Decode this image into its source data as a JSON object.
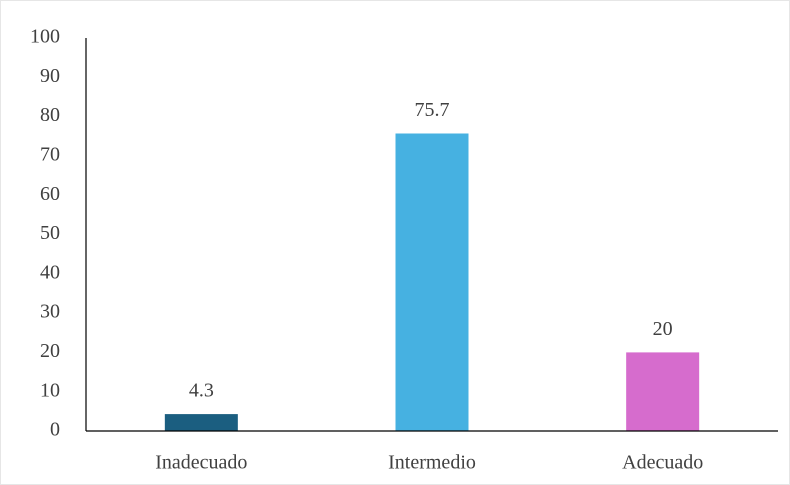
{
  "chart_data": {
    "type": "bar",
    "categories": [
      "Inadecuado",
      "Intermedio",
      "Adecuado"
    ],
    "values": [
      4.3,
      75.7,
      20
    ],
    "colors": [
      "#1b5e80",
      "#46b1e1",
      "#d66ccd"
    ],
    "ylim": [
      0,
      100
    ],
    "yticks": [
      0,
      10,
      20,
      30,
      40,
      50,
      60,
      70,
      80,
      90,
      100
    ],
    "grid": false
  }
}
